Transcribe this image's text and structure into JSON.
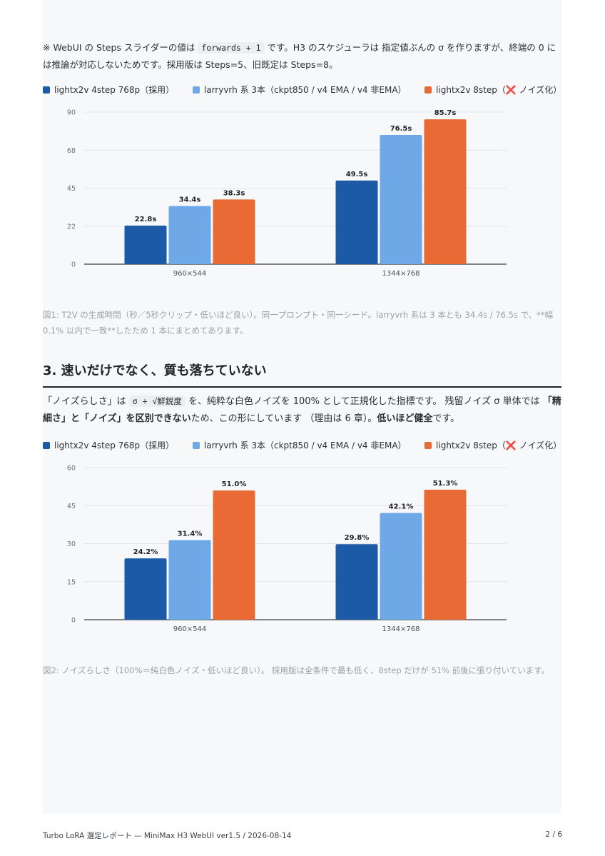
{
  "intro": {
    "prefix": "※ WebUI の Steps スライダーの値は ",
    "code": "forwards + 1",
    "suffix": " です。H3 のスケジューラは 指定値ぶんの σ を作りますが、終端の 0 には推論が対応しないためです。採用版は Steps=5、旧既定は Steps=8。"
  },
  "legend": [
    {
      "label": "lightx2v 4step 768p（採用）",
      "color": "#1c5aa8"
    },
    {
      "label": "larryvrh 系 3本（ckpt850 / v4 EMA / v4 非EMA）",
      "color": "#6fa8e6"
    },
    {
      "label": "lightx2v 8step（❌ ノイズ化）",
      "color": "#ea6a35"
    }
  ],
  "fig1_caption": "図1: T2V の生成時間（秒／5秒クリップ・低いほど良い）。同一プロンプト・同一シード。larryvrh 系は 3 本とも 34.4s / 76.5s で、**幅 0.1% 以内で一致**したため 1 本にまとめてあります。",
  "section": {
    "heading": "3. 速いだけでなく、質も落ちていない",
    "p_prefix": "「ノイズらしさ」は ",
    "p_code": "σ ÷ √鮮鋭度",
    "p_mid": " を、純粋な白色ノイズを 100% として正規化した指標です。 残留ノイズ σ 単体では ",
    "p_bold1": "「精細さ」と「ノイズ」を区別できない",
    "p_mid2": "ため、この形にしています （理由は 6 章）。",
    "p_bold2": "低いほど健全",
    "p_end": "です。"
  },
  "fig2_caption": "図2: ノイズらしさ（100%＝純白色ノイズ・低いほど良い）。 採用版は全条件で最も低く、8step だけが 51% 前後に張り付いています。",
  "footer": {
    "left": "Turbo LoRA 選定レポート — MiniMax H3 WebUI ver1.5 / 2026-08-14",
    "right": "2 / 6"
  },
  "chart_data": [
    {
      "type": "bar",
      "categories": [
        "960×544",
        "1344×768"
      ],
      "series": [
        {
          "name": "lightx2v 4step 768p（採用）",
          "values": [
            22.8,
            49.5
          ],
          "labels": [
            "22.8s",
            "49.5s"
          ]
        },
        {
          "name": "larryvrh 系 3本（ckpt850 / v4 EMA / v4 非EMA）",
          "values": [
            34.4,
            76.5
          ],
          "labels": [
            "34.4s",
            "76.5s"
          ]
        },
        {
          "name": "lightx2v 8step（❌ ノイズ化）",
          "values": [
            38.3,
            85.7
          ],
          "labels": [
            "38.3s",
            "85.7s"
          ]
        }
      ],
      "yticks": [
        "0",
        "22",
        "45",
        "68",
        "90"
      ],
      "ylim": [
        0,
        90
      ],
      "grid": true,
      "legend": "top-left"
    },
    {
      "type": "bar",
      "categories": [
        "960×544",
        "1344×768"
      ],
      "series": [
        {
          "name": "lightx2v 4step 768p（採用）",
          "values": [
            24.2,
            29.8
          ],
          "labels": [
            "24.2%",
            "29.8%"
          ]
        },
        {
          "name": "larryvrh 系 3本（ckpt850 / v4 EMA / v4 非EMA）",
          "values": [
            31.4,
            42.1
          ],
          "labels": [
            "31.4%",
            "42.1%"
          ]
        },
        {
          "name": "lightx2v 8step（❌ ノイズ化）",
          "values": [
            51.0,
            51.3
          ],
          "labels": [
            "51.0%",
            "51.3%"
          ]
        }
      ],
      "yticks": [
        "0",
        "15",
        "30",
        "45",
        "60"
      ],
      "ylim": [
        0,
        60
      ],
      "grid": true,
      "legend": "top-left"
    }
  ]
}
